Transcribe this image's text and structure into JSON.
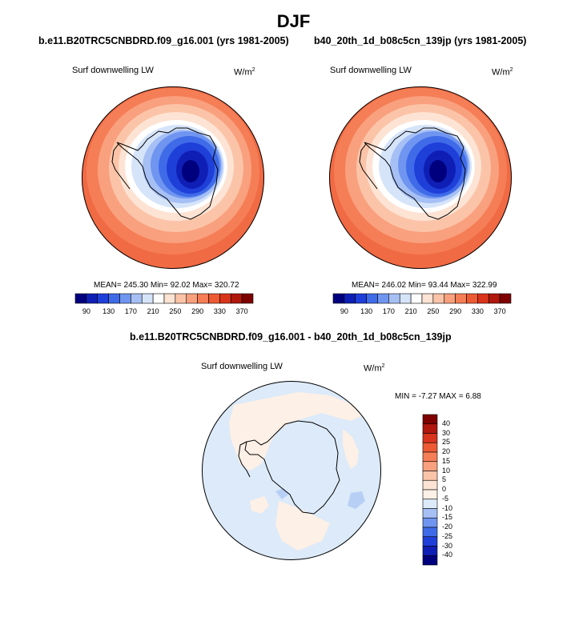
{
  "page": {
    "title": "DJF"
  },
  "chart_data": [
    {
      "type": "heatmap",
      "projection": "south-polar-stereographic",
      "title": "b.e11.B20TRC5CNBDRD.f09_g16.001 (yrs 1981-2005)",
      "field_label": "Surf downwelling LW",
      "units": "W/m",
      "units_exp": "2",
      "stats": {
        "mean": "245.30",
        "min": "92.02",
        "max": "320.72"
      },
      "stats_text": "MEAN= 245.30  Min=  92.02  Max= 320.72",
      "colorbar": {
        "levels": [
          90,
          110,
          130,
          150,
          170,
          190,
          210,
          230,
          250,
          270,
          290,
          310,
          330,
          350,
          370
        ],
        "tick_labels": [
          "90",
          "130",
          "170",
          "210",
          "250",
          "290",
          "330",
          "370"
        ],
        "colors": [
          "#00007f",
          "#0f1fb5",
          "#1f3fd9",
          "#3f6be8",
          "#6f95f0",
          "#a6c0f5",
          "#d6e4fa",
          "#ffffff",
          "#fde3d3",
          "#fbc4a8",
          "#f9a07e",
          "#f57e56",
          "#ee5a34",
          "#d9341c",
          "#b0170d",
          "#7f0000"
        ]
      }
    },
    {
      "type": "heatmap",
      "projection": "south-polar-stereographic",
      "title": "b40_20th_1d_b08c5cn_139jp (yrs 1981-2005)",
      "field_label": "Surf downwelling LW",
      "units": "W/m",
      "units_exp": "2",
      "stats": {
        "mean": "246.02",
        "min": "93.44",
        "max": "322.99"
      },
      "stats_text": "MEAN= 246.02  Min=  93.44  Max= 322.99",
      "colorbar": {
        "levels": [
          90,
          110,
          130,
          150,
          170,
          190,
          210,
          230,
          250,
          270,
          290,
          310,
          330,
          350,
          370
        ],
        "tick_labels": [
          "90",
          "130",
          "170",
          "210",
          "250",
          "290",
          "330",
          "370"
        ],
        "colors": [
          "#00007f",
          "#0f1fb5",
          "#1f3fd9",
          "#3f6be8",
          "#6f95f0",
          "#a6c0f5",
          "#d6e4fa",
          "#ffffff",
          "#fde3d3",
          "#fbc4a8",
          "#f9a07e",
          "#f57e56",
          "#ee5a34",
          "#d9341c",
          "#b0170d",
          "#7f0000"
        ]
      }
    },
    {
      "type": "heatmap",
      "projection": "south-polar-stereographic",
      "title": "b.e11.B20TRC5CNBDRD.f09_g16.001 - b40_20th_1d_b08c5cn_139jp",
      "field_label": "Surf downwelling LW",
      "units": "W/m",
      "units_exp": "2",
      "stats": {
        "min": "-7.27",
        "max": "6.88"
      },
      "stats_text": "MIN =  -7.27 MAX =   6.88",
      "colorbar": {
        "orientation": "vertical",
        "tick_labels": [
          "40",
          "30",
          "25",
          "20",
          "15",
          "10",
          "5",
          "0",
          "-5",
          "-10",
          "-15",
          "-20",
          "-25",
          "-30",
          "-40"
        ],
        "colors_top_to_bottom": [
          "#7f0000",
          "#b0170d",
          "#d9341c",
          "#ee5a34",
          "#f57e56",
          "#f9a07e",
          "#fbc4a8",
          "#fde3d3",
          "#fdf0e6",
          "#dceaf9",
          "#a6c0f5",
          "#6f95f0",
          "#3f6be8",
          "#1f3fd9",
          "#0f1fb5",
          "#00007f"
        ]
      }
    }
  ]
}
